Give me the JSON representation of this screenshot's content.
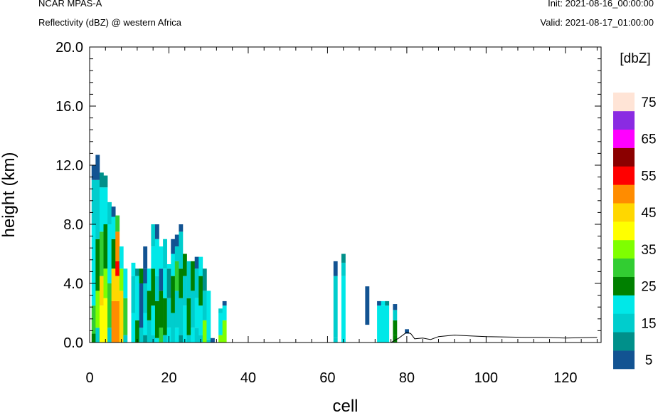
{
  "header": {
    "model": "NCAR MPAS-A",
    "field": "Reflectivity (dBZ) @ western Africa",
    "init": "Init: 2021-08-16_00:00:00",
    "valid": "Valid: 2021-08-17_01:00:00"
  },
  "chart_data": {
    "type": "heatmap",
    "title": "Reflectivity (dBZ) @ western Africa",
    "xlabel": "cell",
    "ylabel": "height (km)",
    "xlim": [
      0,
      129
    ],
    "ylim": [
      0,
      20
    ],
    "x_ticks": [
      "0",
      "20",
      "40",
      "60",
      "80",
      "100",
      "120"
    ],
    "y_ticks": [
      "0.0",
      "4.0",
      "8.0",
      "12.0",
      "16.0",
      "20.0"
    ],
    "colorbar": {
      "title": "[dbZ]",
      "labels": [
        "5",
        "15",
        "25",
        "35",
        "45",
        "55",
        "65",
        "75"
      ],
      "colors": [
        "#125392",
        "#00908a",
        "#00cdcd",
        "#00e8e8",
        "#008000",
        "#32cd32",
        "#7fff00",
        "#ffff00",
        "#ffd700",
        "#ff8c00",
        "#ff0000",
        "#8b0000",
        "#ff00ff",
        "#8a2be2",
        "#ffe4d6"
      ]
    },
    "columns": [
      {
        "x": 1,
        "segments": [
          [
            0.0,
            0.6,
            "#008000"
          ],
          [
            0.6,
            2.5,
            "#32cd32"
          ],
          [
            2.5,
            8.0,
            "#00e8e8"
          ],
          [
            8.0,
            11.0,
            "#00cdcd"
          ],
          [
            11.0,
            12.0,
            "#125392"
          ]
        ]
      },
      {
        "x": 2,
        "segments": [
          [
            0.0,
            1.0,
            "#00cdcd"
          ],
          [
            1.0,
            3.5,
            "#7fff00"
          ],
          [
            3.5,
            7.0,
            "#008000"
          ],
          [
            7.0,
            11.0,
            "#00cdcd"
          ],
          [
            11.0,
            12.7,
            "#125392"
          ]
        ]
      },
      {
        "x": 3,
        "segments": [
          [
            0.0,
            2.5,
            "#ffff00"
          ],
          [
            2.5,
            4.5,
            "#ffd700"
          ],
          [
            4.5,
            7.5,
            "#32cd32"
          ],
          [
            7.5,
            10.5,
            "#00e8e8"
          ],
          [
            10.5,
            11.5,
            "#00908a"
          ]
        ]
      },
      {
        "x": 4,
        "segments": [
          [
            0.0,
            3.0,
            "#ffff00"
          ],
          [
            3.0,
            5.0,
            "#7fff00"
          ],
          [
            5.0,
            8.0,
            "#008000"
          ],
          [
            8.0,
            10.5,
            "#00e8e8"
          ],
          [
            10.5,
            11.3,
            "#00908a"
          ]
        ]
      },
      {
        "x": 5,
        "segments": [
          [
            0.0,
            1.0,
            "#00cdcd"
          ],
          [
            1.0,
            4.0,
            "#32cd32"
          ],
          [
            4.0,
            8.0,
            "#00e8e8"
          ],
          [
            8.0,
            9.5,
            "#00cdcd"
          ]
        ]
      },
      {
        "x": 6,
        "segments": [
          [
            0.0,
            2.8,
            "#ff8c00"
          ],
          [
            2.8,
            5.0,
            "#ffd700"
          ],
          [
            5.0,
            7.0,
            "#008000"
          ],
          [
            7.0,
            8.5,
            "#00e8e8"
          ],
          [
            8.5,
            9.2,
            "#125392"
          ]
        ]
      },
      {
        "x": 7,
        "segments": [
          [
            0.0,
            2.8,
            "#ff8c00"
          ],
          [
            2.8,
            4.5,
            "#ffd700"
          ],
          [
            4.5,
            5.5,
            "#ff0000"
          ],
          [
            5.5,
            7.5,
            "#ff8c00"
          ],
          [
            7.5,
            8.6,
            "#32cd32"
          ]
        ]
      },
      {
        "x": 8,
        "segments": [
          [
            0.0,
            3.5,
            "#ffd700"
          ],
          [
            3.5,
            5.0,
            "#7fff00"
          ],
          [
            5.0,
            6.5,
            "#00e8e8"
          ]
        ]
      },
      {
        "x": 9,
        "segments": [
          [
            0.0,
            0.5,
            "#00cdcd"
          ],
          [
            0.5,
            3.0,
            "#32cd32"
          ],
          [
            3.0,
            5.0,
            "#00e8e8"
          ]
        ]
      },
      {
        "x": 11,
        "segments": [
          [
            0.0,
            2.0,
            "#00e8e8"
          ],
          [
            2.0,
            4.5,
            "#00cdcd"
          ],
          [
            4.5,
            5.4,
            "#00e8e8"
          ]
        ]
      },
      {
        "x": 12,
        "segments": [
          [
            0.0,
            1.5,
            "#008000"
          ],
          [
            1.5,
            4.5,
            "#00e8e8"
          ],
          [
            4.5,
            5.0,
            "#00908a"
          ]
        ]
      },
      {
        "x": 13,
        "segments": [
          [
            0.0,
            1.0,
            "#00cdcd"
          ],
          [
            1.0,
            4.0,
            "#125392"
          ],
          [
            4.0,
            5.0,
            "#008000"
          ]
        ]
      },
      {
        "x": 14,
        "segments": [
          [
            0.0,
            0.5,
            "#00908a"
          ],
          [
            0.5,
            2.0,
            "#00e8e8"
          ],
          [
            2.0,
            4.0,
            "#00cdcd"
          ],
          [
            4.0,
            5.0,
            "#125392"
          ],
          [
            5.0,
            6.5,
            "#125392"
          ]
        ]
      },
      {
        "x": 15,
        "segments": [
          [
            0.0,
            1.5,
            "#00cdcd"
          ],
          [
            1.5,
            3.5,
            "#008000"
          ],
          [
            3.5,
            5.0,
            "#00e8e8"
          ]
        ]
      },
      {
        "x": 16,
        "segments": [
          [
            0.0,
            0.5,
            "#00cdcd"
          ],
          [
            0.5,
            2.5,
            "#00e8e8"
          ],
          [
            2.5,
            5.0,
            "#008000"
          ],
          [
            5.0,
            6.5,
            "#00e8e8"
          ],
          [
            6.5,
            8.0,
            "#00cdcd"
          ]
        ]
      },
      {
        "x": 17,
        "segments": [
          [
            0.0,
            0.3,
            "#00e8e8"
          ],
          [
            0.3,
            2.8,
            "#008000"
          ],
          [
            2.8,
            4.5,
            "#00cdcd"
          ],
          [
            4.5,
            7.0,
            "#00e8e8"
          ],
          [
            7.0,
            8.0,
            "#125392"
          ]
        ]
      },
      {
        "x": 18,
        "segments": [
          [
            0.0,
            1.0,
            "#32cd32"
          ],
          [
            1.0,
            3.5,
            "#008000"
          ],
          [
            3.5,
            5.0,
            "#125392"
          ],
          [
            5.0,
            6.5,
            "#00e8e8"
          ]
        ]
      },
      {
        "x": 19,
        "segments": [
          [
            0.0,
            0.5,
            "#00cdcd"
          ],
          [
            0.5,
            3.0,
            "#008000"
          ],
          [
            3.0,
            5.0,
            "#00e8e8"
          ],
          [
            5.0,
            7.0,
            "#00cdcd"
          ]
        ]
      },
      {
        "x": 20,
        "segments": [
          [
            0.0,
            1.0,
            "#00e8e8"
          ],
          [
            1.0,
            3.0,
            "#00cdcd"
          ],
          [
            3.0,
            5.0,
            "#00908a"
          ],
          [
            5.0,
            5.3,
            "#00e8e8"
          ]
        ]
      },
      {
        "x": 21,
        "segments": [
          [
            0.0,
            2.0,
            "#00cdcd"
          ],
          [
            2.0,
            4.5,
            "#008000"
          ],
          [
            4.5,
            6.0,
            "#00e8e8"
          ],
          [
            6.0,
            7.0,
            "#125392"
          ]
        ]
      },
      {
        "x": 22,
        "segments": [
          [
            0.0,
            1.0,
            "#00e8e8"
          ],
          [
            1.0,
            3.5,
            "#00cdcd"
          ],
          [
            3.5,
            5.5,
            "#32cd32"
          ],
          [
            5.5,
            6.5,
            "#00cdcd"
          ],
          [
            6.5,
            7.3,
            "#125392"
          ]
        ]
      },
      {
        "x": 23,
        "segments": [
          [
            0.0,
            0.5,
            "#00908a"
          ],
          [
            0.5,
            3.0,
            "#00cdcd"
          ],
          [
            3.0,
            5.0,
            "#008000"
          ],
          [
            5.0,
            7.5,
            "#00cdcd"
          ],
          [
            7.5,
            8.0,
            "#125392"
          ]
        ]
      },
      {
        "x": 24,
        "segments": [
          [
            0.0,
            2.5,
            "#00e8e8"
          ],
          [
            2.5,
            4.5,
            "#00cdcd"
          ],
          [
            4.5,
            6.0,
            "#008000"
          ]
        ]
      },
      {
        "x": 25,
        "segments": [
          [
            0.0,
            0.5,
            "#00cdcd"
          ],
          [
            0.5,
            3.0,
            "#008000"
          ],
          [
            3.0,
            5.5,
            "#00cdcd"
          ]
        ]
      },
      {
        "x": 26,
        "segments": [
          [
            0.0,
            1.0,
            "#00e8e8"
          ],
          [
            1.0,
            3.5,
            "#00cdcd"
          ],
          [
            3.5,
            5.5,
            "#008000"
          ]
        ]
      },
      {
        "x": 27,
        "segments": [
          [
            0.0,
            1.0,
            "#00cdcd"
          ],
          [
            1.0,
            3.0,
            "#00e8e8"
          ],
          [
            3.0,
            5.0,
            "#00cdcd"
          ],
          [
            5.0,
            5.8,
            "#125392"
          ]
        ]
      },
      {
        "x": 28,
        "segments": [
          [
            0.0,
            0.5,
            "#00cdcd"
          ],
          [
            0.5,
            2.5,
            "#00e8e8"
          ],
          [
            2.5,
            4.5,
            "#008000"
          ],
          [
            4.5,
            5.8,
            "#00e8e8"
          ]
        ]
      },
      {
        "x": 29,
        "segments": [
          [
            0.0,
            1.5,
            "#7fff00"
          ],
          [
            1.5,
            3.5,
            "#00cdcd"
          ],
          [
            3.5,
            5.0,
            "#00908a"
          ]
        ]
      },
      {
        "x": 30,
        "segments": [
          [
            0.0,
            0.2,
            "#00cdcd"
          ],
          [
            0.2,
            3.5,
            "#00e8e8"
          ]
        ]
      },
      {
        "x": 31,
        "segments": [
          [
            0.0,
            0.3,
            "#125392"
          ]
        ]
      },
      {
        "x": 33,
        "segments": [
          [
            0.0,
            0.5,
            "#7fff00"
          ],
          [
            0.5,
            2.0,
            "#00e8e8"
          ],
          [
            2.0,
            2.3,
            "#00cdcd"
          ]
        ]
      },
      {
        "x": 34,
        "segments": [
          [
            0.0,
            1.5,
            "#7fff00"
          ],
          [
            1.5,
            2.5,
            "#00e8e8"
          ],
          [
            2.5,
            2.8,
            "#125392"
          ]
        ]
      },
      {
        "x": 62,
        "segments": [
          [
            0.0,
            0.3,
            "#00cdcd"
          ],
          [
            0.3,
            4.5,
            "#00cdcd"
          ],
          [
            4.5,
            5.5,
            "#125392"
          ]
        ]
      },
      {
        "x": 64,
        "segments": [
          [
            0.0,
            4.5,
            "#00e8e8"
          ],
          [
            4.5,
            5.4,
            "#00cdcd"
          ],
          [
            5.4,
            6.0,
            "#00908a"
          ]
        ]
      },
      {
        "x": 70,
        "segments": [
          [
            1.2,
            3.8,
            "#125392"
          ]
        ]
      },
      {
        "x": 73,
        "segments": [
          [
            0.0,
            2.5,
            "#00e8e8"
          ],
          [
            2.5,
            2.8,
            "#125392"
          ]
        ]
      },
      {
        "x": 74,
        "segments": [
          [
            0.0,
            2.5,
            "#00e8e8"
          ],
          [
            2.5,
            2.8,
            "#00e8e8"
          ]
        ]
      },
      {
        "x": 75,
        "segments": [
          [
            0.0,
            2.5,
            "#00e8e8"
          ],
          [
            2.5,
            2.8,
            "#00908a"
          ]
        ]
      },
      {
        "x": 77,
        "segments": [
          [
            0.0,
            0.5,
            "#008000"
          ],
          [
            0.5,
            1.5,
            "#008000"
          ],
          [
            1.5,
            2.2,
            "#00cdcd"
          ],
          [
            2.2,
            2.6,
            "#125392"
          ]
        ]
      },
      {
        "x": 80,
        "segments": [
          [
            0.6,
            0.9,
            "#125392"
          ]
        ]
      }
    ],
    "terrain": [
      [
        0,
        0
      ],
      [
        76,
        0
      ],
      [
        78,
        0.3
      ],
      [
        80,
        0.7
      ],
      [
        81,
        0.6
      ],
      [
        82,
        0.25
      ],
      [
        84,
        0.3
      ],
      [
        86,
        0.2
      ],
      [
        88,
        0.4
      ],
      [
        92,
        0.5
      ],
      [
        96,
        0.45
      ],
      [
        100,
        0.4
      ],
      [
        110,
        0.35
      ],
      [
        114,
        0.35
      ],
      [
        120,
        0.3
      ],
      [
        128,
        0.35
      ]
    ]
  }
}
